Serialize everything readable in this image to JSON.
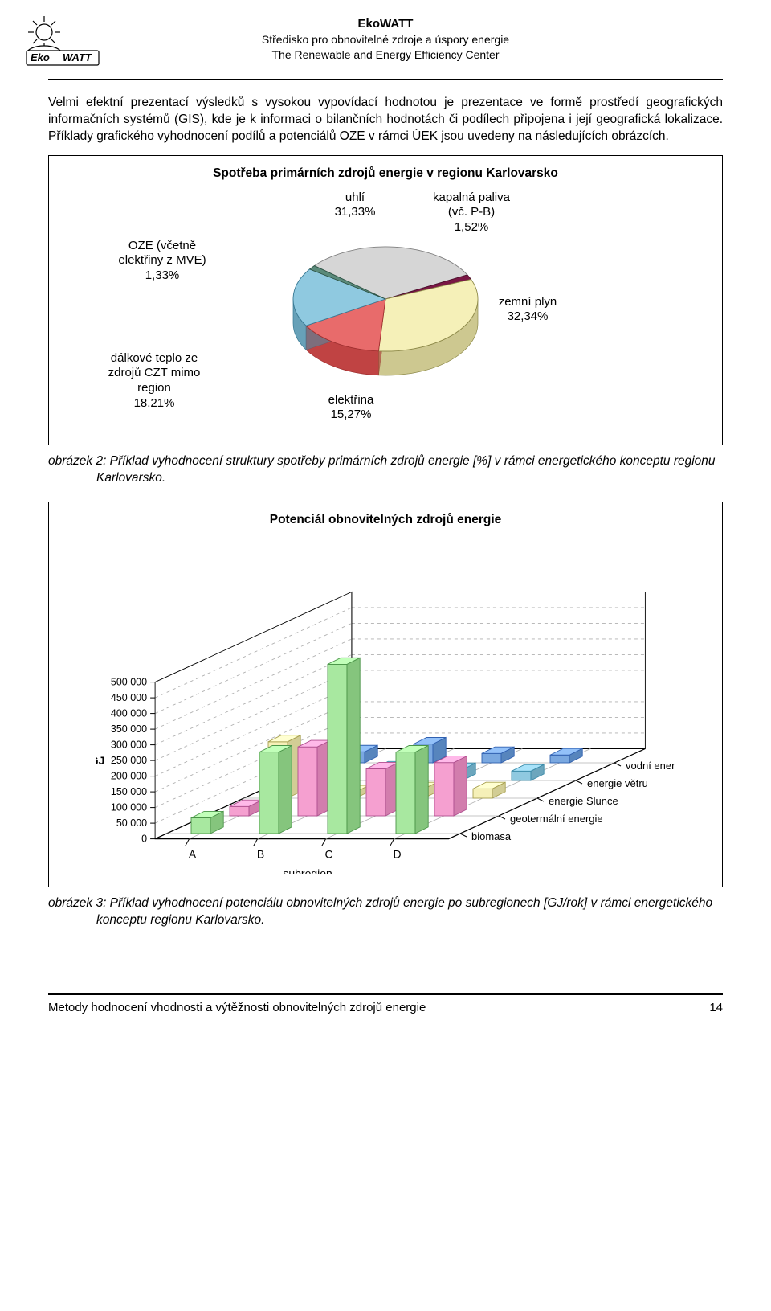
{
  "header": {
    "title": "EkoWATT",
    "sub1": "Středisko pro obnovitelné zdroje a úspory energie",
    "sub2": "The Renewable and Energy Efficiency Center"
  },
  "intro": "Velmi efektní prezentací výsledků s vysokou vypovídací hodnotou je prezentace ve formě prostředí geografických informačních systémů (GIS), kde je k informaci o bilančních hodnotách či podílech připojena i její geografická lokalizace. Příklady grafického vyhodnocení podílů a potenciálů OZE v rámci ÚEK jsou uvedeny na následujících obrázcích.",
  "pie": {
    "title": "Spotřeba primárních zdrojů energie v regionu Karlovarsko",
    "slices": [
      {
        "label_line1": "uhlí",
        "label_line2": "31,33%",
        "name": "coal",
        "value": 31.33,
        "color": "#d6d6d6",
        "stroke": "#808080"
      },
      {
        "label_line1": "kapalná paliva",
        "label_line2": "(vč. P-B)",
        "label_line3": "1,52%",
        "name": "liquid-fuels",
        "value": 1.52,
        "color": "#7a1745",
        "stroke": "#4a0d2a"
      },
      {
        "label_line1": "zemní plyn",
        "label_line2": "32,34%",
        "name": "natural-gas",
        "value": 32.34,
        "color": "#f5f0b8",
        "stroke": "#8e8a4a"
      },
      {
        "label_line1": "elektřina",
        "label_line2": "15,27%",
        "name": "electricity",
        "value": 15.27,
        "color": "#e86b6b",
        "stroke": "#a03030"
      },
      {
        "label_line1": "dálkové teplo ze",
        "label_line2": "zdrojů CZT mimo",
        "label_line3": "region",
        "label_line4": "18,21%",
        "name": "district-heat",
        "value": 18.21,
        "color": "#8fc9e0",
        "stroke": "#3a7a94"
      },
      {
        "label_line1": "OZE (včetně",
        "label_line2": "elektřiny z MVE)",
        "label_line3": "1,33%",
        "name": "res",
        "value": 1.33,
        "color": "#5a8a7a",
        "stroke": "#2f5547"
      }
    ],
    "side_color": "#9a9770",
    "background": "#ffffff"
  },
  "caption1": "obrázek 2: Příklad vyhodnocení struktury spotřeby primárních zdrojů energie [%] v rámci energetického konceptu regionu Karlovarsko.",
  "bar3d": {
    "title": "Potenciál obnovitelných zdrojů energie",
    "y_title": "GJ",
    "x_title": "subregion",
    "x_categories": [
      "A",
      "B",
      "C",
      "D"
    ],
    "z_categories": [
      "biomasa",
      "geotermální energie",
      "energie Slunce",
      "energie větru",
      "vodní energie"
    ],
    "z_colors": [
      "#a8e8a0",
      "#f5a0d0",
      "#f5f0b8",
      "#8fc9e0",
      "#7aa8e0"
    ],
    "z_strokes": [
      "#4a9448",
      "#b05090",
      "#a8a050",
      "#3a8aa8",
      "#3060b0"
    ],
    "y_ticks": [
      0,
      50000,
      100000,
      150000,
      200000,
      250000,
      300000,
      350000,
      400000,
      450000,
      500000
    ],
    "y_tick_labels": [
      "0",
      "50 000",
      "100 000",
      "150 000",
      "200 000",
      "250 000",
      "300 000",
      "350 000",
      "400 000",
      "450 000",
      "500 000"
    ],
    "ylim": [
      0,
      500000
    ],
    "values": [
      [
        50000,
        30000,
        180000,
        40000,
        35000
      ],
      [
        260000,
        220000,
        20000,
        40000,
        60000
      ],
      [
        540000,
        150000,
        30000,
        35000,
        30000
      ],
      [
        260000,
        170000,
        30000,
        30000,
        25000
      ]
    ],
    "grid_color": "#b0b0b0",
    "floor_color": "#f5f5f5",
    "wall_color": "#ffffff"
  },
  "caption2": "obrázek 3: Příklad vyhodnocení potenciálu obnovitelných zdrojů energie po subregionech [GJ/rok] v rámci energetického konceptu regionu Karlovarsko.",
  "footer": {
    "text": "Metody hodnocení vhodnosti a výtěžnosti obnovitelných zdrojů energie",
    "page": "14"
  }
}
